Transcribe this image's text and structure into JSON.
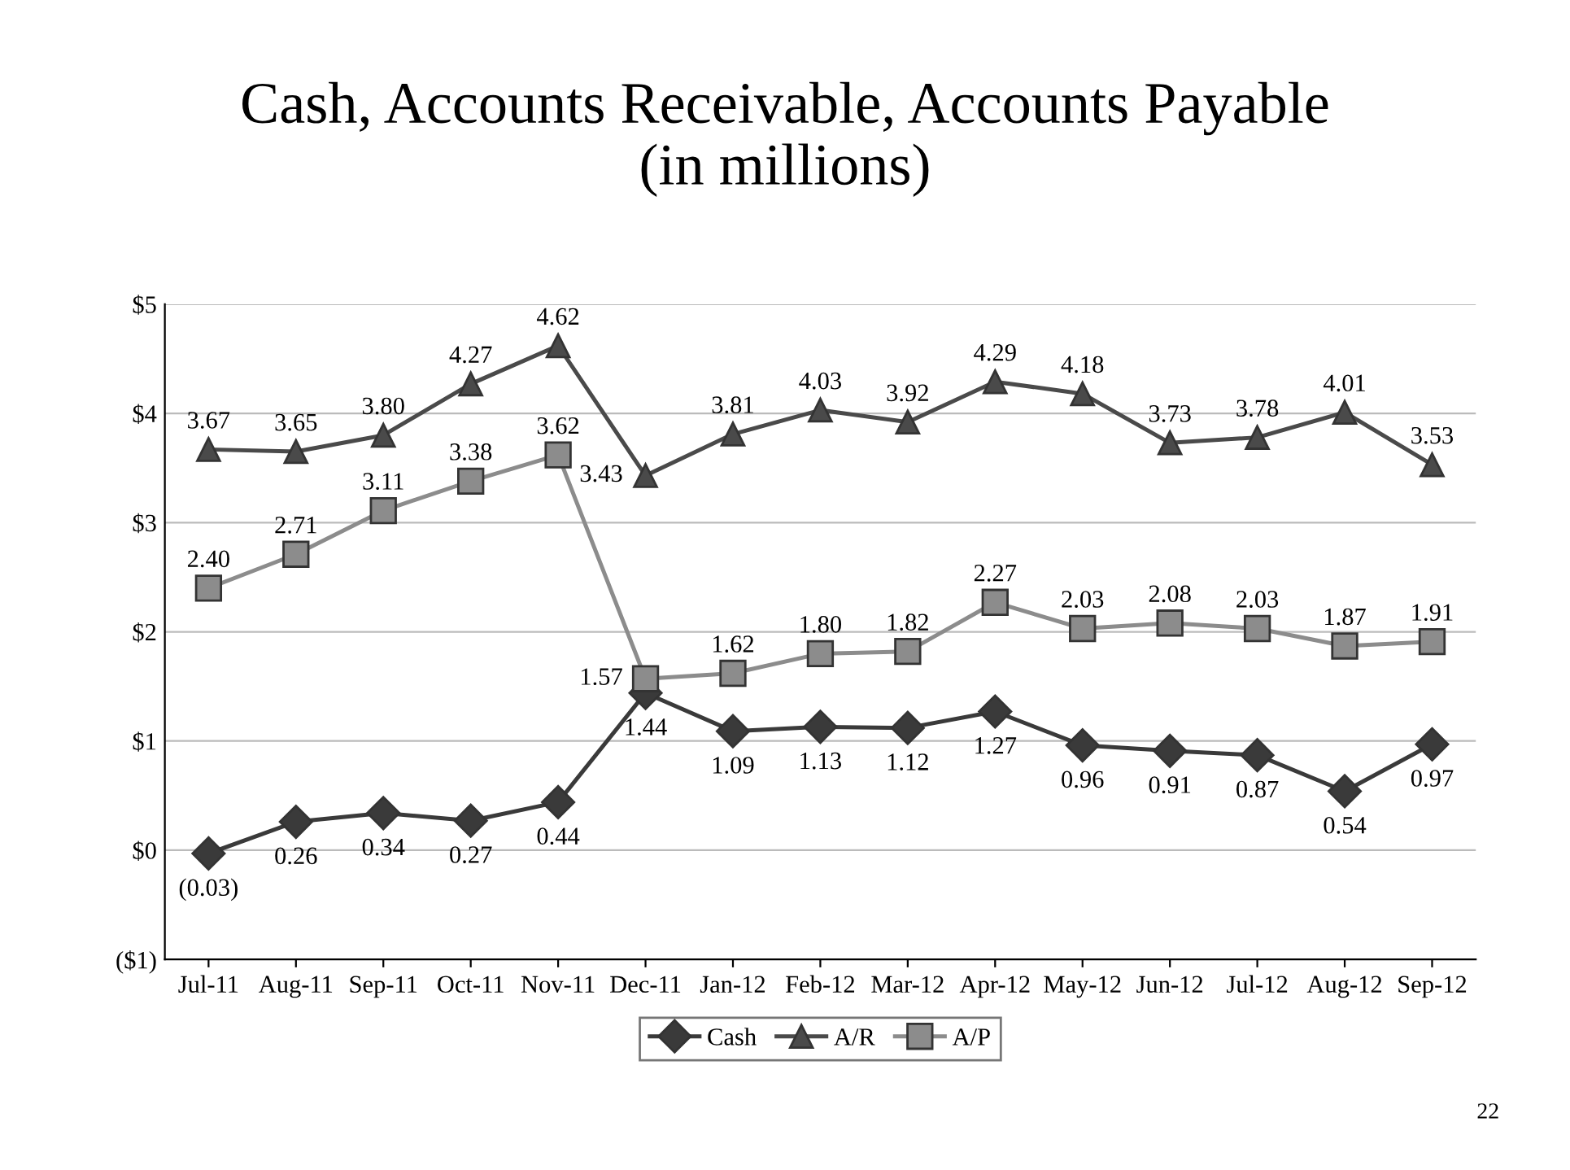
{
  "chart_data": {
    "type": "line",
    "title": "Cash, Accounts Receivable, Accounts Payable\n(in millions)",
    "categories": [
      "Jul-11",
      "Aug-11",
      "Sep-11",
      "Oct-11",
      "Nov-11",
      "Dec-11",
      "Jan-12",
      "Feb-12",
      "Mar-12",
      "Apr-12",
      "May-12",
      "Jun-12",
      "Jul-12",
      "Aug-12",
      "Sep-12"
    ],
    "series": [
      {
        "name": "Cash",
        "color": "#3a3a3a",
        "marker": "diamond",
        "values": [
          -0.03,
          0.26,
          0.34,
          0.27,
          0.44,
          1.44,
          1.09,
          1.13,
          1.12,
          1.27,
          0.96,
          0.91,
          0.87,
          0.54,
          0.97
        ],
        "value_labels": [
          "(0.03)",
          "0.26",
          "0.34",
          "0.27",
          "0.44",
          "1.44",
          "1.09",
          "1.13",
          "1.12",
          "1.27",
          "0.96",
          "0.91",
          "0.87",
          "0.54",
          "0.97"
        ]
      },
      {
        "name": "A/R",
        "color": "#4a4a4a",
        "marker": "triangle",
        "values": [
          3.67,
          3.65,
          3.8,
          4.27,
          4.62,
          3.43,
          3.81,
          4.03,
          3.92,
          4.29,
          4.18,
          3.73,
          3.78,
          4.01,
          3.53
        ],
        "value_labels": [
          "3.67",
          "3.65",
          "3.80",
          "4.27",
          "4.62",
          "3.43",
          "3.81",
          "4.03",
          "3.92",
          "4.29",
          "4.18",
          "3.73",
          "3.78",
          "4.01",
          "3.53"
        ]
      },
      {
        "name": "A/P",
        "color": "#8c8c8c",
        "marker": "square",
        "values": [
          2.4,
          2.71,
          3.11,
          3.38,
          3.62,
          1.57,
          1.62,
          1.8,
          1.82,
          2.27,
          2.03,
          2.08,
          2.03,
          1.87,
          1.91
        ],
        "value_labels": [
          "2.40",
          "2.71",
          "3.11",
          "3.38",
          "3.62",
          "1.57",
          "1.62",
          "1.80",
          "1.82",
          "2.27",
          "2.03",
          "2.08",
          "2.03",
          "1.87",
          "1.91"
        ]
      }
    ],
    "ylim": [
      -1,
      5
    ],
    "yticks": [
      {
        "value": -1,
        "label": "($1)"
      },
      {
        "value": 0,
        "label": "$0"
      },
      {
        "value": 1,
        "label": "$1"
      },
      {
        "value": 2,
        "label": "$2"
      },
      {
        "value": 3,
        "label": "$3"
      },
      {
        "value": 4,
        "label": "$4"
      },
      {
        "value": 5,
        "label": "$5"
      }
    ],
    "grid": "y",
    "legend": "bottom",
    "line_style": "solid",
    "annotations": [
      "22"
    ]
  }
}
